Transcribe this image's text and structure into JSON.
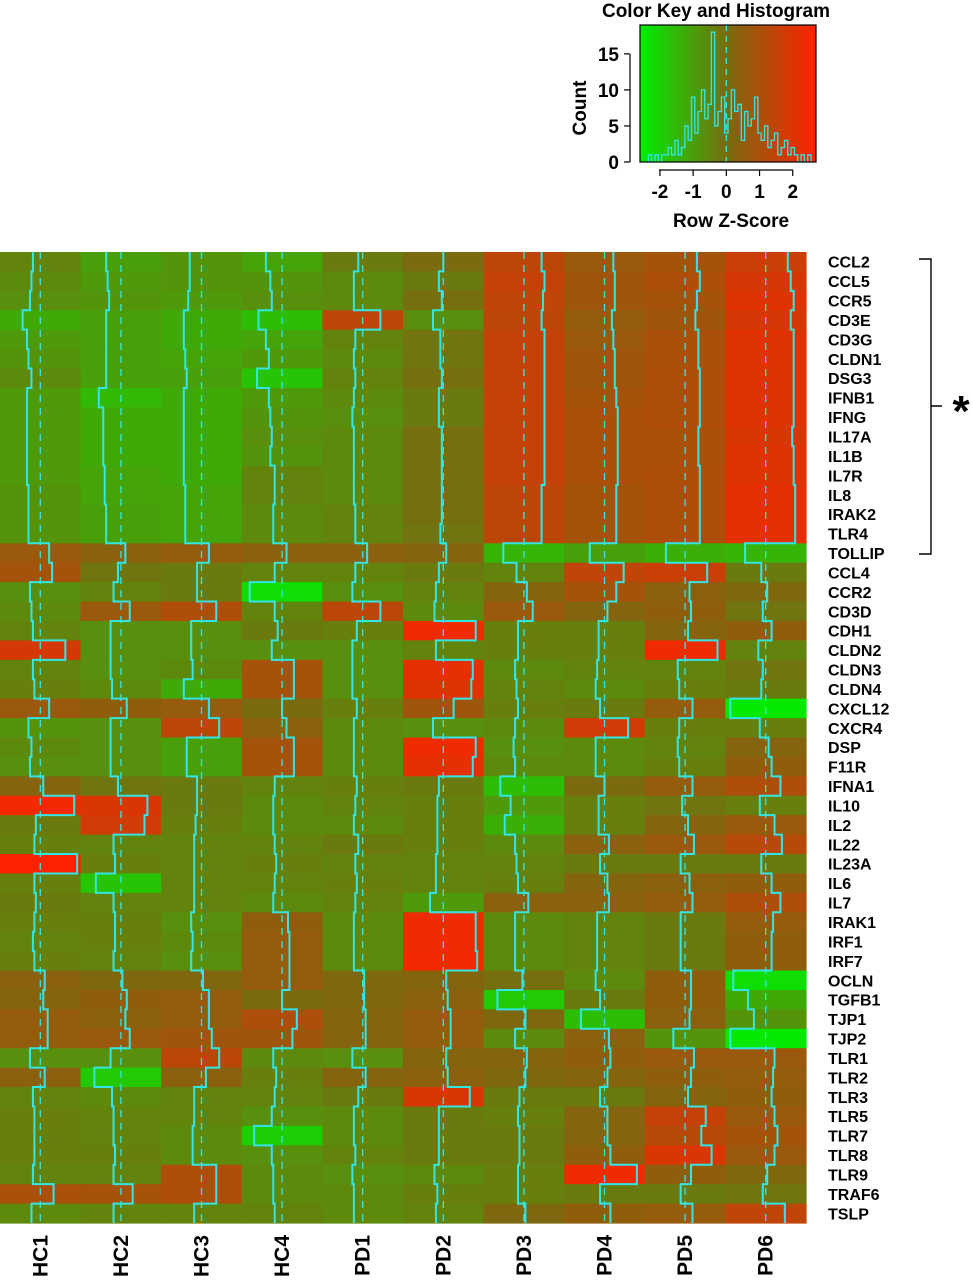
{
  "chart_data": [
    {
      "type": "histogram",
      "title": "Color Key and Histogram",
      "xlabel": "Row Z-Score",
      "ylabel": "Count",
      "xlim": [
        -2.6,
        2.7
      ],
      "ylim": [
        0,
        19
      ],
      "xticks": [
        -2,
        -1,
        0,
        1,
        2
      ],
      "yticks": [
        0,
        5,
        10,
        15
      ],
      "color_scale": {
        "low": "#00ee00",
        "mid": "#7a6a10",
        "high": "#ff2200"
      },
      "trace_color": "#33e6e6",
      "histogram": {
        "x": [
          -2.4,
          -2.3,
          -2.2,
          -2.1,
          -2.0,
          -1.9,
          -1.8,
          -1.7,
          -1.6,
          -1.5,
          -1.4,
          -1.3,
          -1.2,
          -1.1,
          -1.0,
          -0.9,
          -0.8,
          -0.7,
          -0.6,
          -0.5,
          -0.4,
          -0.3,
          -0.2,
          -0.1,
          0.0,
          0.1,
          0.2,
          0.3,
          0.4,
          0.5,
          0.6,
          0.7,
          0.8,
          0.9,
          1.0,
          1.1,
          1.2,
          1.3,
          1.4,
          1.5,
          1.6,
          1.7,
          1.8,
          1.9,
          2.0,
          2.1,
          2.2,
          2.3,
          2.4,
          2.5
        ],
        "counts": [
          0,
          1,
          0,
          1,
          0,
          1,
          1,
          2,
          1,
          3,
          1,
          2,
          5,
          3,
          9,
          4,
          7,
          10,
          6,
          8,
          18,
          5,
          7,
          9,
          4,
          6,
          10,
          7,
          8,
          3,
          7,
          5,
          6,
          9,
          4,
          3,
          5,
          2,
          3,
          4,
          1,
          2,
          3,
          1,
          2,
          1,
          0,
          1,
          0,
          1
        ]
      }
    },
    {
      "type": "heatmap",
      "columns": [
        "HC1",
        "HC2",
        "HC3",
        "HC4",
        "PD1",
        "PD2",
        "PD3",
        "PD4",
        "PD5",
        "PD6"
      ],
      "rows": [
        "CCL2",
        "CCL5",
        "CCR5",
        "CD3E",
        "CD3G",
        "CLDN1",
        "DSG3",
        "IFNB1",
        "IFNG",
        "IL17A",
        "IL1B",
        "IL7R",
        "IL8",
        "IRAK2",
        "TLR4",
        "TOLLIP",
        "CCL4",
        "CCR2",
        "CD3D",
        "CDH1",
        "CLDN2",
        "CLDN3",
        "CLDN4",
        "CXCL12",
        "CXCR4",
        "DSP",
        "F11R",
        "IFNA1",
        "IL10",
        "IL2",
        "IL22",
        "IL23A",
        "IL6",
        "IL7",
        "IRAK1",
        "IRF1",
        "IRF7",
        "OCLN",
        "TGFB1",
        "TJP1",
        "TJP2",
        "TLR1",
        "TLR2",
        "TLR3",
        "TLR5",
        "TLR7",
        "TLR8",
        "TLR9",
        "TRAF6",
        "TSLP"
      ],
      "annotation": {
        "label": "*",
        "rows_from": "CCL2",
        "rows_to": "TOLLIP"
      },
      "values": [
        [
          -0.5,
          -1.0,
          -0.8,
          -1.1,
          -0.3,
          0.0,
          1.2,
          0.6,
          0.8,
          1.5
        ],
        [
          -0.6,
          -0.9,
          -0.8,
          -0.8,
          -0.6,
          -0.3,
          1.4,
          0.7,
          1.0,
          1.7
        ],
        [
          -0.7,
          -0.8,
          -0.9,
          -0.7,
          -0.6,
          -0.1,
          1.3,
          0.7,
          0.8,
          1.9
        ],
        [
          -1.2,
          -1.0,
          -1.2,
          -1.6,
          1.2,
          -0.7,
          1.2,
          0.5,
          0.7,
          1.7
        ],
        [
          -0.9,
          -1.0,
          -1.2,
          -1.1,
          -0.5,
          -0.2,
          1.4,
          0.6,
          0.9,
          1.9
        ],
        [
          -0.8,
          -1.0,
          -1.1,
          -0.9,
          -0.6,
          -0.2,
          1.4,
          0.7,
          0.9,
          1.9
        ],
        [
          -0.6,
          -1.0,
          -1.0,
          -1.7,
          -0.5,
          -0.1,
          1.4,
          0.7,
          1.0,
          1.9
        ],
        [
          -0.9,
          -1.5,
          -1.2,
          -0.9,
          -0.6,
          -0.3,
          1.4,
          0.8,
          1.0,
          1.9
        ],
        [
          -0.9,
          -1.2,
          -1.2,
          -0.8,
          -0.7,
          -0.3,
          1.4,
          0.9,
          1.0,
          1.9
        ],
        [
          -0.9,
          -1.2,
          -1.2,
          -0.7,
          -0.6,
          -0.1,
          1.4,
          0.9,
          0.9,
          1.8
        ],
        [
          -0.9,
          -1.2,
          -1.2,
          -0.8,
          -0.6,
          -0.1,
          1.4,
          0.9,
          0.9,
          1.9
        ],
        [
          -0.9,
          -1.1,
          -1.2,
          -0.5,
          -0.6,
          -0.1,
          1.4,
          0.9,
          1.0,
          1.9
        ],
        [
          -0.8,
          -1.1,
          -1.1,
          -0.5,
          -0.6,
          -0.1,
          1.2,
          0.8,
          1.0,
          2.0
        ],
        [
          -0.8,
          -1.0,
          -1.1,
          -0.6,
          -0.5,
          -0.1,
          1.2,
          0.8,
          1.0,
          2.0
        ],
        [
          -0.8,
          -1.0,
          -1.1,
          -0.6,
          -0.5,
          -0.2,
          1.2,
          0.8,
          1.0,
          2.0
        ],
        [
          0.6,
          0.3,
          0.5,
          0.3,
          0.3,
          0.2,
          -1.4,
          -1.0,
          -1.3,
          -1.4
        ],
        [
          0.8,
          -0.2,
          -0.3,
          -0.5,
          -0.5,
          -0.3,
          -0.5,
          1.3,
          1.5,
          -0.3
        ],
        [
          -0.7,
          -0.5,
          -0.3,
          -2.2,
          -0.7,
          -0.5,
          0.2,
          0.8,
          0.3,
          0.1
        ],
        [
          -0.6,
          0.6,
          1.0,
          -0.5,
          1.2,
          -0.6,
          0.6,
          0.2,
          0.4,
          -0.2
        ],
        [
          -0.5,
          -0.7,
          -0.7,
          -0.3,
          -0.4,
          2.2,
          -0.4,
          -0.4,
          0.2,
          0.4
        ],
        [
          1.7,
          -0.7,
          -0.7,
          -0.7,
          -0.7,
          -0.5,
          -0.4,
          -0.4,
          2.2,
          -0.5
        ],
        [
          -0.5,
          -0.7,
          -0.6,
          0.8,
          -0.7,
          2.0,
          -0.6,
          -0.5,
          -0.5,
          -0.2
        ],
        [
          -0.4,
          -0.6,
          -1.2,
          0.8,
          -0.7,
          1.9,
          -0.5,
          -0.6,
          -0.4,
          -0.3
        ],
        [
          0.6,
          0.4,
          0.5,
          0.0,
          -0.4,
          0.7,
          -0.4,
          -0.3,
          0.5,
          -2.4
        ],
        [
          -0.8,
          -0.7,
          1.2,
          0.3,
          -0.6,
          -0.7,
          -0.6,
          1.6,
          -0.4,
          -0.4
        ],
        [
          -0.6,
          -0.7,
          -1.0,
          0.8,
          -0.6,
          2.2,
          -0.7,
          -0.6,
          -0.5,
          0.2
        ],
        [
          -0.7,
          -0.7,
          -1.0,
          0.8,
          -0.6,
          2.0,
          -0.6,
          -0.6,
          -0.4,
          0.4
        ],
        [
          0.2,
          -0.2,
          -0.3,
          -0.5,
          -0.4,
          -0.3,
          -1.6,
          0.0,
          0.5,
          1.0
        ],
        [
          2.3,
          1.8,
          -0.3,
          -0.6,
          -0.5,
          -0.4,
          -0.9,
          -0.4,
          -0.2,
          -0.4
        ],
        [
          -0.3,
          1.6,
          -0.4,
          -0.6,
          -0.6,
          -0.4,
          -1.3,
          -0.4,
          0.2,
          0.6
        ],
        [
          -0.4,
          -0.5,
          -0.5,
          -0.5,
          -0.3,
          -0.4,
          -0.6,
          0.3,
          0.6,
          1.1
        ],
        [
          2.5,
          -0.4,
          -0.5,
          -0.4,
          -0.5,
          -0.5,
          -0.5,
          -0.3,
          -0.3,
          -0.3
        ],
        [
          -0.4,
          -1.7,
          -0.5,
          -0.5,
          -0.4,
          -0.5,
          -0.4,
          0.2,
          0.3,
          0.4
        ],
        [
          -0.3,
          -0.5,
          -0.5,
          -0.6,
          -0.5,
          -0.9,
          0.3,
          0.3,
          0.5,
          1.0
        ],
        [
          -0.4,
          -0.4,
          -0.7,
          0.4,
          -0.6,
          2.2,
          -0.6,
          -0.5,
          -0.3,
          0.5
        ],
        [
          -0.5,
          -0.4,
          -0.6,
          0.5,
          -0.6,
          2.2,
          -0.6,
          -0.5,
          -0.3,
          0.4
        ],
        [
          -0.4,
          -0.5,
          -0.7,
          0.5,
          -0.6,
          2.3,
          -0.6,
          -0.5,
          -0.3,
          0.4
        ],
        [
          0.3,
          0.1,
          0.1,
          0.5,
          0.1,
          0.2,
          -0.1,
          -0.6,
          0.4,
          -2.2
        ],
        [
          0.2,
          0.4,
          0.5,
          0.0,
          0.1,
          0.3,
          -1.8,
          -0.3,
          0.4,
          -1.2
        ],
        [
          0.5,
          0.3,
          0.5,
          1.0,
          0.2,
          0.5,
          0.1,
          -1.6,
          0.3,
          -0.8
        ],
        [
          0.5,
          0.6,
          0.7,
          0.7,
          0.2,
          0.5,
          -0.6,
          0.3,
          -0.8,
          -2.4
        ],
        [
          -0.7,
          -0.7,
          1.2,
          -0.6,
          -0.7,
          0.2,
          0.2,
          0.4,
          0.6,
          0.6
        ],
        [
          0.3,
          -1.8,
          0.3,
          -0.4,
          0.2,
          0.3,
          0.1,
          0.2,
          0.4,
          0.5
        ],
        [
          -0.5,
          -0.6,
          -0.5,
          -0.5,
          -0.3,
          1.8,
          -0.3,
          -0.3,
          0.2,
          0.4
        ],
        [
          -0.4,
          -0.5,
          -0.5,
          -0.7,
          -0.6,
          -0.3,
          -0.4,
          0.2,
          1.4,
          0.6
        ],
        [
          -0.4,
          -0.5,
          -0.6,
          -1.9,
          -0.6,
          -0.3,
          -0.3,
          0.2,
          1.1,
          0.8
        ],
        [
          -0.4,
          -0.4,
          -0.6,
          -0.7,
          -0.5,
          -0.3,
          -0.3,
          0.4,
          1.8,
          0.6
        ],
        [
          -0.5,
          -0.5,
          1.0,
          -0.6,
          -0.7,
          -0.6,
          -0.4,
          2.2,
          0.4,
          0.1
        ],
        [
          0.9,
          0.8,
          1.0,
          -0.6,
          -0.6,
          -0.4,
          -0.4,
          -0.3,
          -0.3,
          -0.2
        ],
        [
          -0.6,
          -0.5,
          -0.5,
          -0.5,
          -0.6,
          -0.5,
          0.1,
          0.4,
          0.5,
          1.3
        ]
      ]
    }
  ]
}
